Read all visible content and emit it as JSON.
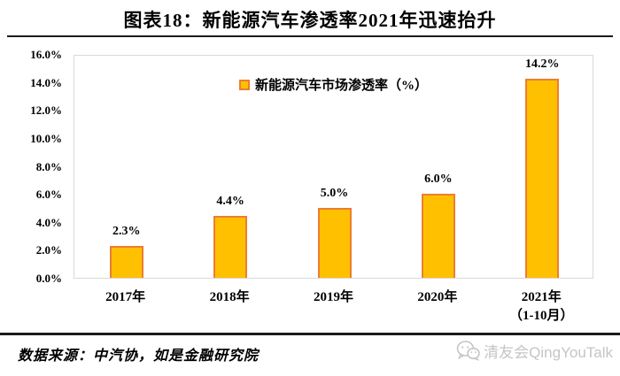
{
  "header": {
    "title": "图表18：新能源汽车渗透率2021年迅速抬升"
  },
  "chart_data": {
    "type": "bar",
    "title": "图表18：新能源汽车渗透率2021年迅速抬升",
    "legend": "新能源汽车市场渗透率（%）",
    "legend_position": "top-center-inside",
    "categories": [
      {
        "label": "2017年",
        "sublabel": ""
      },
      {
        "label": "2018年",
        "sublabel": ""
      },
      {
        "label": "2019年",
        "sublabel": ""
      },
      {
        "label": "2020年",
        "sublabel": ""
      },
      {
        "label": "2021年",
        "sublabel": "（1-10月）"
      }
    ],
    "values": [
      2.3,
      4.4,
      5.0,
      6.0,
      14.2
    ],
    "data_labels": [
      "2.3%",
      "4.4%",
      "5.0%",
      "6.0%",
      "14.2%"
    ],
    "ylim": [
      0,
      16
    ],
    "ytick_labels": [
      "0.0%",
      "2.0%",
      "4.0%",
      "6.0%",
      "8.0%",
      "10.0%",
      "12.0%",
      "14.0%",
      "16.0%"
    ],
    "grid": false,
    "colors": {
      "bar_fill": "#FFC000",
      "bar_border": "#ED7D31",
      "plot_border": "#d9d9d9"
    }
  },
  "footer": {
    "source": "数据来源：中汽协，如是金融研究院",
    "watermark": "清友会QingYouTalk"
  }
}
